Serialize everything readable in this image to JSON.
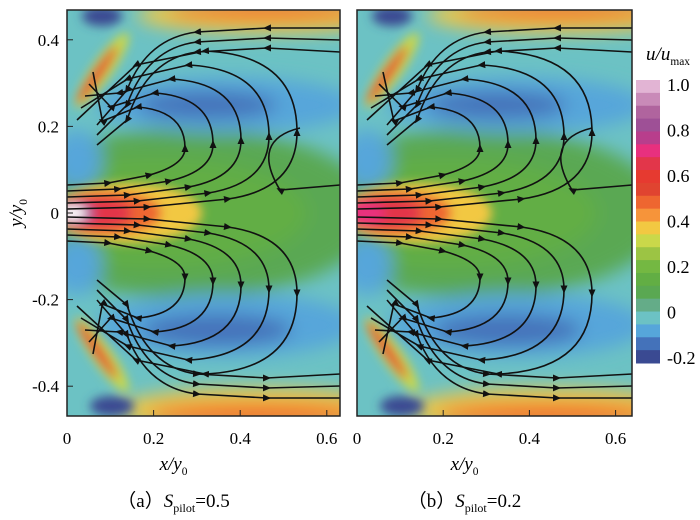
{
  "chart_data": [
    {
      "type": "heatmap",
      "panel": "a",
      "caption_prefix": "（a）",
      "caption_var": "S",
      "caption_sub": "pilot",
      "caption_value": "=0.5",
      "xlabel": "x/y",
      "xlabel_sub": "0",
      "ylabel": "y/y",
      "ylabel_sub": "0",
      "xlim": [
        0,
        0.63
      ],
      "ylim": [
        -0.47,
        0.47
      ],
      "xticks": [
        "0",
        "0.2",
        "0.4",
        "0.6"
      ],
      "xtick_values": [
        0,
        0.2,
        0.4,
        0.6
      ],
      "yticks": [
        "0.4",
        "0.2",
        "0",
        "-0.2",
        "-0.4"
      ],
      "ytick_values": [
        0.4,
        0.2,
        0,
        -0.2,
        -0.4
      ],
      "overlay": "streamlines"
    },
    {
      "type": "heatmap",
      "panel": "b",
      "caption_prefix": "（b）",
      "caption_var": "S",
      "caption_sub": "pilot",
      "caption_value": "=0.2",
      "xlabel": "x/y",
      "xlabel_sub": "0",
      "xlim": [
        0,
        0.63
      ],
      "ylim": [
        -0.47,
        0.47
      ],
      "xticks": [
        "0",
        "0.2",
        "0.4",
        "0.6"
      ],
      "xtick_values": [
        0,
        0.2,
        0.4,
        0.6
      ],
      "overlay": "streamlines"
    }
  ],
  "colorbar": {
    "label": "u/u",
    "label_sub": "max",
    "range": [
      -0.2,
      1.0
    ],
    "ticks": [
      "1.0",
      "0.8",
      "0.6",
      "0.4",
      "0.2",
      "0",
      "-0.2"
    ],
    "tick_values": [
      1.0,
      0.8,
      0.6,
      0.4,
      0.2,
      0,
      -0.2
    ],
    "colors": [
      "#e2b4d4",
      "#c98ab8",
      "#b0649e",
      "#9e5096",
      "#b83e8c",
      "#e8307e",
      "#e2364a",
      "#e63a30",
      "#e04430",
      "#ee6630",
      "#f6943a",
      "#f2c842",
      "#cad84a",
      "#9cc444",
      "#74b842",
      "#62ae44",
      "#5aa852",
      "#64ac88",
      "#6cc2c4",
      "#56a6da",
      "#4472ba",
      "#3a4a92"
    ]
  }
}
